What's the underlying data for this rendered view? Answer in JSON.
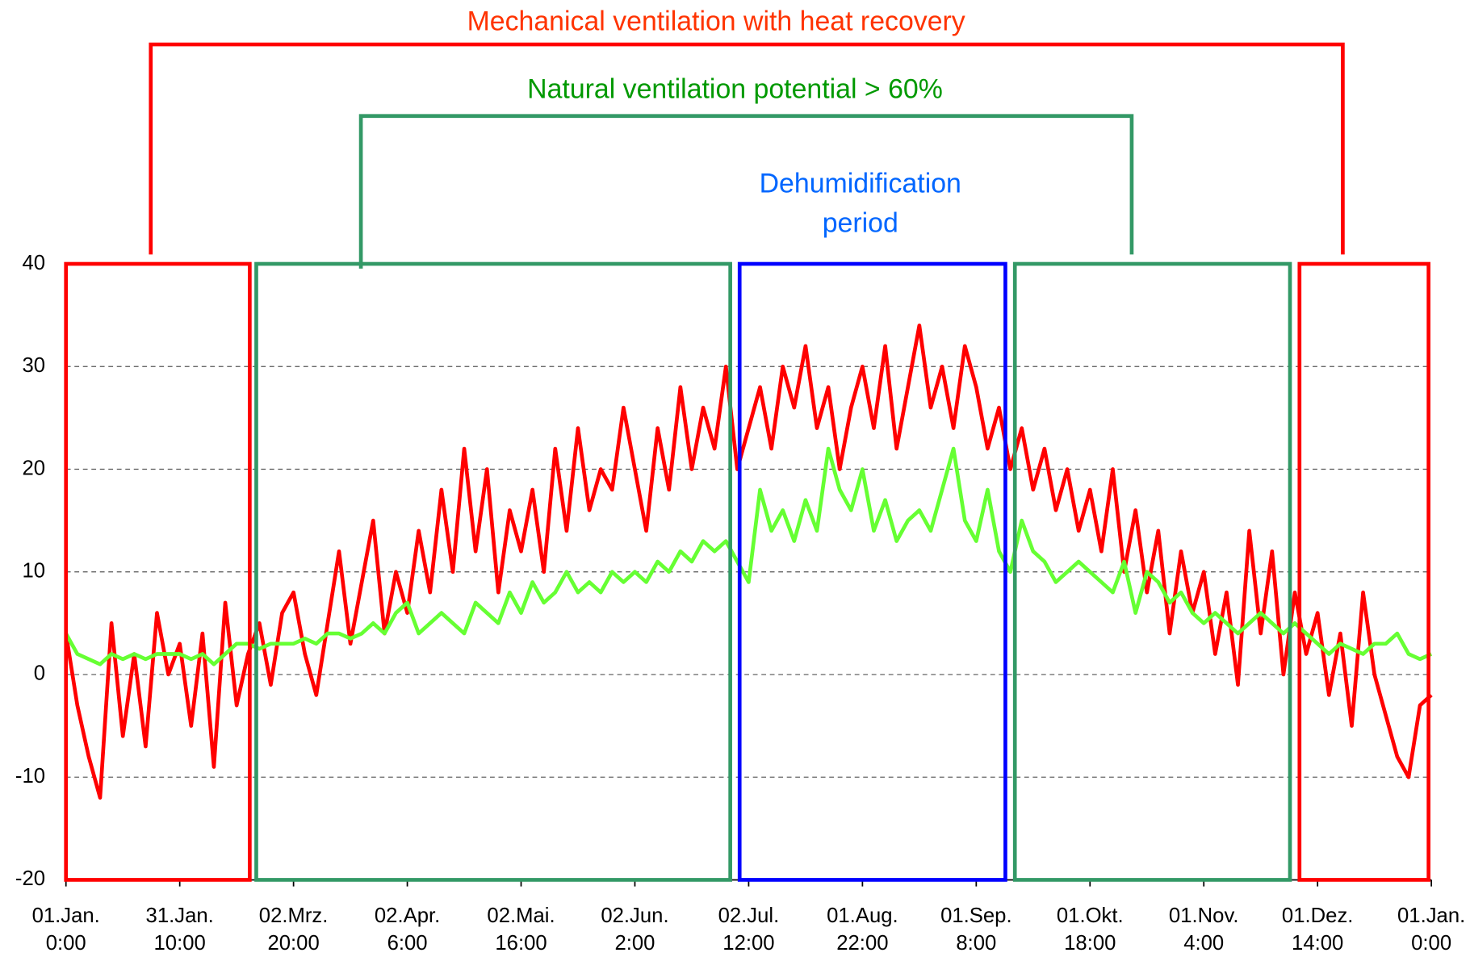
{
  "chart_data": {
    "type": "line",
    "annotations": [
      {
        "text": "Mechanical ventilation with heat recovery",
        "color": "#ff3300"
      },
      {
        "text": "Natural ventilation potential > 60%",
        "color": "#009900"
      },
      {
        "text": "Dehumidification\nperiod",
        "color": "#0066ff"
      }
    ],
    "regions": [
      {
        "x0": 0,
        "x1": 1179,
        "color": "#ff0000"
      },
      {
        "x0": 1221,
        "x1": 4262,
        "color": "#339966"
      },
      {
        "x0": 4322,
        "x1": 6027,
        "color": "#0000ff"
      },
      {
        "x0": 6088,
        "x1": 7853,
        "color": "#339966"
      },
      {
        "x0": 7914,
        "x1": 8742,
        "color": "#ff0000"
      }
    ],
    "x": [
      0,
      73,
      146,
      219,
      292,
      365,
      438,
      511,
      584,
      657,
      730,
      803,
      876,
      949,
      1022,
      1095,
      1168,
      1241,
      1314,
      1387,
      1460,
      1533,
      1606,
      1679,
      1752,
      1825,
      1898,
      1971,
      2044,
      2117,
      2190,
      2263,
      2336,
      2409,
      2482,
      2555,
      2628,
      2701,
      2774,
      2847,
      2920,
      2993,
      3066,
      3139,
      3212,
      3285,
      3358,
      3431,
      3504,
      3577,
      3650,
      3723,
      3796,
      3869,
      3942,
      4015,
      4088,
      4161,
      4234,
      4307,
      4380,
      4453,
      4526,
      4599,
      4672,
      4745,
      4818,
      4891,
      4964,
      5037,
      5110,
      5183,
      5256,
      5329,
      5402,
      5475,
      5548,
      5621,
      5694,
      5767,
      5840,
      5913,
      5986,
      6059,
      6132,
      6205,
      6278,
      6351,
      6424,
      6497,
      6570,
      6643,
      6716,
      6789,
      6862,
      6935,
      7008,
      7081,
      7154,
      7227,
      7300,
      7373,
      7446,
      7519,
      7592,
      7665,
      7738,
      7811,
      7884,
      7957,
      8030,
      8103,
      8176,
      8249,
      8322,
      8395,
      8468,
      8541,
      8614,
      8687,
      8760
    ],
    "series": [
      {
        "color": "#ff0000",
        "values": [
          4,
          -3,
          -8,
          -12,
          5,
          -6,
          2,
          -7,
          6,
          0,
          3,
          -5,
          4,
          -9,
          7,
          -3,
          2,
          5,
          -1,
          6,
          8,
          2,
          -2,
          5,
          12,
          3,
          9,
          15,
          4,
          10,
          6,
          14,
          8,
          18,
          10,
          22,
          12,
          20,
          8,
          16,
          12,
          18,
          10,
          22,
          14,
          24,
          16,
          20,
          18,
          26,
          20,
          14,
          24,
          18,
          28,
          20,
          26,
          22,
          30,
          20,
          24,
          28,
          22,
          30,
          26,
          32,
          24,
          28,
          20,
          26,
          30,
          24,
          32,
          22,
          28,
          34,
          26,
          30,
          24,
          32,
          28,
          22,
          26,
          20,
          24,
          18,
          22,
          16,
          20,
          14,
          18,
          12,
          20,
          10,
          16,
          8,
          14,
          4,
          12,
          6,
          10,
          2,
          8,
          -1,
          14,
          4,
          12,
          0,
          8,
          2,
          6,
          -2,
          4,
          -5,
          8,
          0,
          -4,
          -8,
          -10,
          -3,
          -2
        ]
      },
      {
        "color": "#66ff33",
        "values": [
          4,
          2,
          1.5,
          1,
          2,
          1.5,
          2,
          1.5,
          2,
          2,
          2,
          1.5,
          2,
          1,
          2,
          3,
          3,
          2.5,
          3,
          3,
          3,
          3.5,
          3,
          4,
          4,
          3.5,
          4,
          5,
          4,
          6,
          7,
          4,
          5,
          6,
          5,
          4,
          7,
          6,
          5,
          8,
          6,
          9,
          7,
          8,
          10,
          8,
          9,
          8,
          10,
          9,
          10,
          9,
          11,
          10,
          12,
          11,
          13,
          12,
          13,
          11,
          9,
          18,
          14,
          16,
          13,
          17,
          14,
          22,
          18,
          16,
          20,
          14,
          17,
          13,
          15,
          16,
          14,
          18,
          22,
          15,
          13,
          18,
          12,
          10,
          15,
          12,
          11,
          9,
          10,
          11,
          10,
          9,
          8,
          11,
          6,
          10,
          9,
          7,
          8,
          6,
          5,
          6,
          5,
          4,
          5,
          6,
          5,
          4,
          5,
          4,
          3,
          2,
          3,
          2.5,
          2,
          3,
          3,
          4,
          2,
          1.5,
          2
        ]
      }
    ],
    "xlim": [
      0,
      8760
    ],
    "xticks": [
      {
        "value": 0,
        "label": "01.Jan.\n0:00"
      },
      {
        "value": 730,
        "label": "31.Jan.\n10:00"
      },
      {
        "value": 1460,
        "label": "02.Mrz.\n20:00"
      },
      {
        "value": 2190,
        "label": "02.Apr.\n6:00"
      },
      {
        "value": 2920,
        "label": "02.Mai.\n16:00"
      },
      {
        "value": 3650,
        "label": "02.Jun.\n2:00"
      },
      {
        "value": 4380,
        "label": "02.Jul.\n12:00"
      },
      {
        "value": 5110,
        "label": "01.Aug.\n22:00"
      },
      {
        "value": 5840,
        "label": "01.Sep.\n8:00"
      },
      {
        "value": 6570,
        "label": "01.Okt.\n18:00"
      },
      {
        "value": 7300,
        "label": "01.Nov.\n4:00"
      },
      {
        "value": 8030,
        "label": "01.Dez.\n14:00"
      },
      {
        "value": 8760,
        "label": "01.Jan.\n0:00"
      }
    ],
    "ylim": [
      -20,
      40
    ],
    "yticks": [
      -20,
      -10,
      0,
      10,
      20,
      30,
      40
    ],
    "grid": true
  }
}
